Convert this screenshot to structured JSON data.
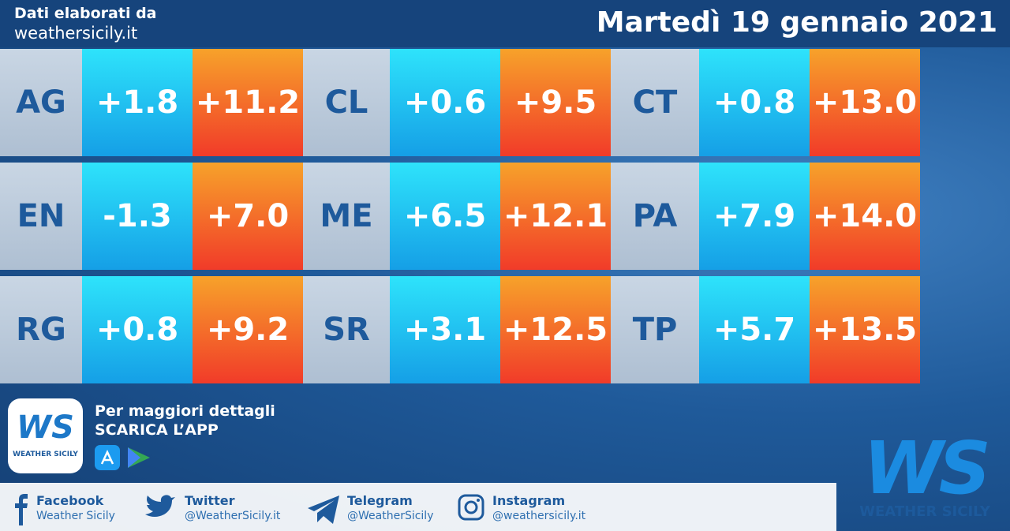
{
  "header": {
    "source_line1": "Dati elaborati da",
    "source_line2": "weathersicily.it",
    "date": "Martedì 19 gennaio 2021"
  },
  "table": {
    "rows": [
      [
        "AG",
        "+1.8",
        "+11.2",
        "CL",
        "+0.6",
        "+9.5",
        "CT",
        "+0.8",
        "+13.0"
      ],
      [
        "EN",
        "-1.3",
        "+7.0",
        "ME",
        "+6.5",
        "+12.1",
        "PA",
        "+7.9",
        "+14.0"
      ],
      [
        "RG",
        "+0.8",
        "+9.2",
        "SR",
        "+3.1",
        "+12.5",
        "TP",
        "+5.7",
        "+13.5"
      ]
    ]
  },
  "promo": {
    "line1": "Per maggiori dettagli",
    "line2": "SCARICA L’APP",
    "logo_text": "WS",
    "logo_caption": "WEATHER SICILY"
  },
  "social": [
    {
      "name": "Facebook",
      "handle": "Weather Sicily"
    },
    {
      "name": "Twitter",
      "handle": "@WeatherSicily.it"
    },
    {
      "name": "Telegram",
      "handle": "@WeatherSicily"
    },
    {
      "name": "Instagram",
      "handle": "@weathersicily.it"
    }
  ],
  "brand": {
    "logo": "WS",
    "caption": "WEATHER SICILY"
  }
}
